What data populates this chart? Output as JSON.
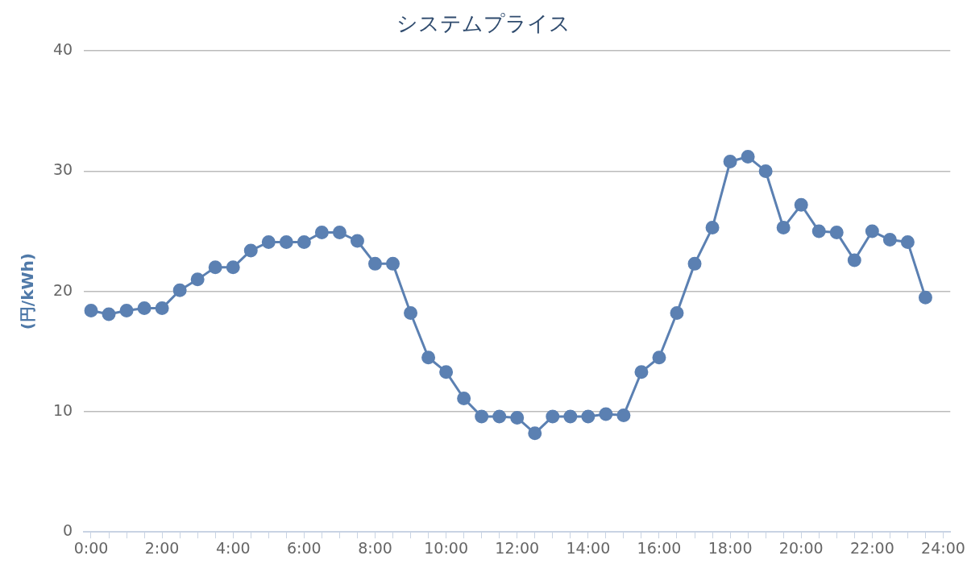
{
  "chart_data": {
    "type": "line",
    "title": "システムプライス",
    "ylabel": "(円/kWh)",
    "x": [
      0,
      0.5,
      1,
      1.5,
      2,
      2.5,
      3,
      3.5,
      4,
      4.5,
      5,
      5.5,
      6,
      6.5,
      7,
      7.5,
      8,
      8.5,
      9,
      9.5,
      10,
      10.5,
      11,
      11.5,
      12,
      12.5,
      13,
      13.5,
      14,
      14.5,
      15,
      15.5,
      16,
      16.5,
      17,
      17.5,
      18,
      18.5,
      19,
      19.5,
      20,
      20.5,
      21,
      21.5,
      22,
      22.5,
      23,
      23.5
    ],
    "series": [
      {
        "color": "#5b80b2",
        "values": [
          18.4,
          18.1,
          18.4,
          18.6,
          18.6,
          20.1,
          21.0,
          22.0,
          22.0,
          23.4,
          24.1,
          24.1,
          24.1,
          24.9,
          24.9,
          24.2,
          22.3,
          22.3,
          18.2,
          14.5,
          13.3,
          11.1,
          9.6,
          9.6,
          9.5,
          8.2,
          9.6,
          9.6,
          9.6,
          9.8,
          9.7,
          13.3,
          14.5,
          18.2,
          22.3,
          25.3,
          30.8,
          31.2,
          30.0,
          25.3,
          27.2,
          25.0,
          24.9,
          22.6,
          25.0,
          24.3,
          24.1,
          19.5
        ]
      }
    ],
    "xlim": [
      -0.2,
      24.2
    ],
    "xticks": [
      {
        "value": 0,
        "label": "0:00"
      },
      {
        "value": 0.5,
        "label": null
      },
      {
        "value": 1,
        "label": null
      },
      {
        "value": 1.5,
        "label": null
      },
      {
        "value": 2,
        "label": "2:00"
      },
      {
        "value": 2.5,
        "label": null
      },
      {
        "value": 3,
        "label": null
      },
      {
        "value": 3.5,
        "label": null
      },
      {
        "value": 4,
        "label": "4:00"
      },
      {
        "value": 4.5,
        "label": null
      },
      {
        "value": 5,
        "label": null
      },
      {
        "value": 5.5,
        "label": null
      },
      {
        "value": 6,
        "label": "6:00"
      },
      {
        "value": 6.5,
        "label": null
      },
      {
        "value": 7,
        "label": null
      },
      {
        "value": 7.5,
        "label": null
      },
      {
        "value": 8,
        "label": "8:00"
      },
      {
        "value": 8.5,
        "label": null
      },
      {
        "value": 9,
        "label": null
      },
      {
        "value": 9.5,
        "label": null
      },
      {
        "value": 10,
        "label": "10:00"
      },
      {
        "value": 10.5,
        "label": null
      },
      {
        "value": 11,
        "label": null
      },
      {
        "value": 11.5,
        "label": null
      },
      {
        "value": 12,
        "label": "12:00"
      },
      {
        "value": 12.5,
        "label": null
      },
      {
        "value": 13,
        "label": null
      },
      {
        "value": 13.5,
        "label": null
      },
      {
        "value": 14,
        "label": "14:00"
      },
      {
        "value": 14.5,
        "label": null
      },
      {
        "value": 15,
        "label": null
      },
      {
        "value": 15.5,
        "label": null
      },
      {
        "value": 16,
        "label": "16:00"
      },
      {
        "value": 16.5,
        "label": null
      },
      {
        "value": 17,
        "label": null
      },
      {
        "value": 17.5,
        "label": null
      },
      {
        "value": 18,
        "label": "18:00"
      },
      {
        "value": 18.5,
        "label": null
      },
      {
        "value": 19,
        "label": null
      },
      {
        "value": 19.5,
        "label": null
      },
      {
        "value": 20,
        "label": "20:00"
      },
      {
        "value": 20.5,
        "label": null
      },
      {
        "value": 21,
        "label": null
      },
      {
        "value": 21.5,
        "label": null
      },
      {
        "value": 22,
        "label": "22:00"
      },
      {
        "value": 22.5,
        "label": null
      },
      {
        "value": 23,
        "label": null
      },
      {
        "value": 23.5,
        "label": null
      },
      {
        "value": 24,
        "label": "24:00"
      }
    ],
    "ylim": [
      0,
      40
    ],
    "yticks": [
      0,
      10,
      20,
      30,
      40
    ],
    "grid": "y",
    "legend": false,
    "marker": "circle",
    "line_style": "solid"
  }
}
